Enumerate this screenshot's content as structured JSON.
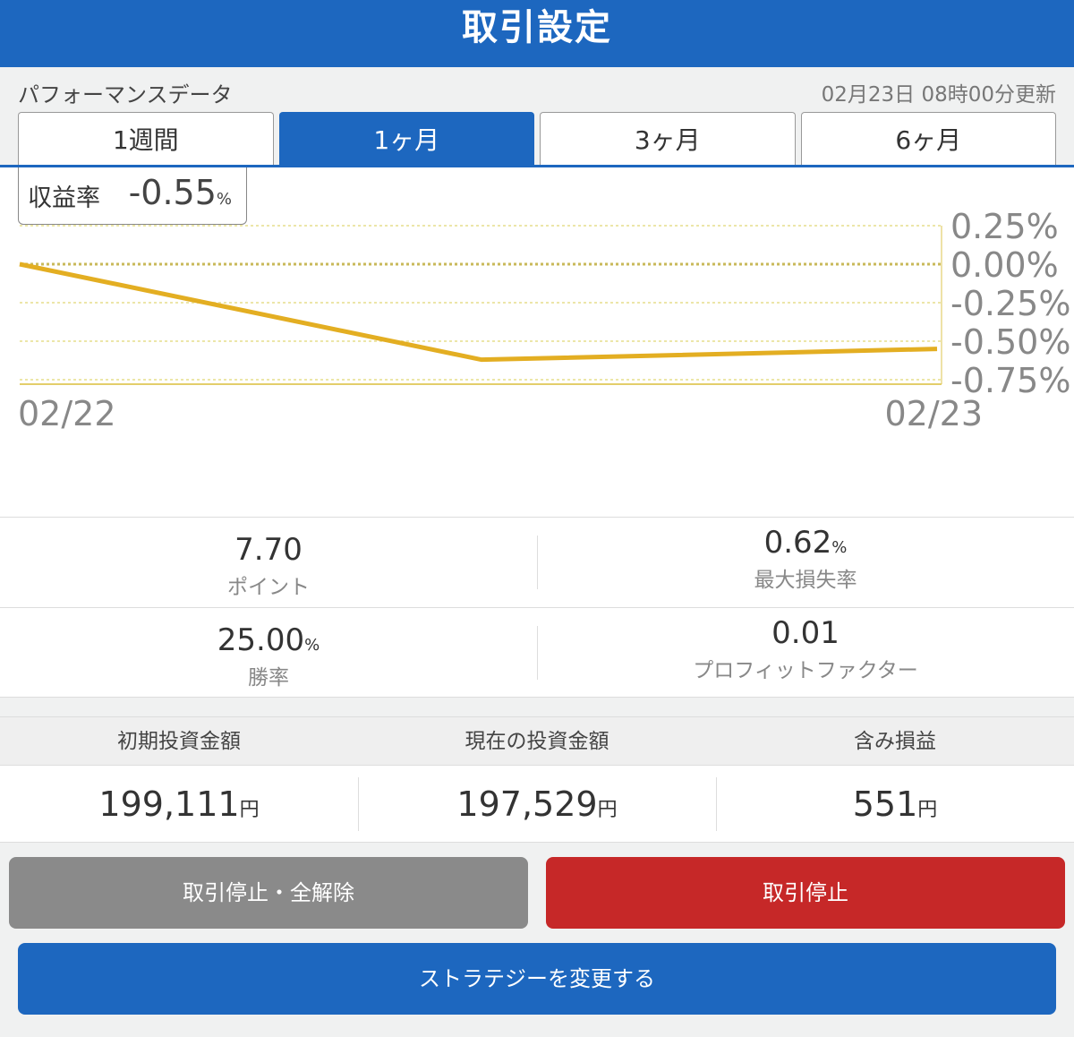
{
  "header": {
    "title": "取引設定"
  },
  "performance": {
    "title": "パフォーマンスデータ",
    "updated": "02月23日 08時00分更新"
  },
  "tabs": [
    {
      "label": "1週間"
    },
    {
      "label": "1ヶ月"
    },
    {
      "label": "3ヶ月"
    },
    {
      "label": "6ヶ月"
    }
  ],
  "active_tab": "1ヶ月",
  "return_rate": {
    "label": "収益率",
    "value": "-0.55",
    "unit": "%"
  },
  "chart_data": {
    "type": "line",
    "x": [
      "02/22",
      "mid",
      "02/23"
    ],
    "xticks": [
      "02/22",
      "02/23"
    ],
    "y": [
      0.0,
      -0.62,
      -0.55
    ],
    "yticks": [
      "0.25%",
      "0.00%",
      "-0.25%",
      "-0.50%",
      "-0.75%"
    ],
    "ylim": [
      -0.75,
      0.25
    ],
    "grid": true,
    "color": "#e3ae22"
  },
  "stats": [
    {
      "value": "7.70",
      "unit": "",
      "label": "ポイント"
    },
    {
      "value": "0.62",
      "unit": "%",
      "label": "最大損失率"
    },
    {
      "value": "25.00",
      "unit": "%",
      "label": "勝率"
    },
    {
      "value": "0.01",
      "unit": "",
      "label": "プロフィットファクター"
    }
  ],
  "investment": {
    "headers": [
      "初期投資金額",
      "現在の投資金額",
      "含み損益"
    ],
    "values": [
      "199,111",
      "197,529",
      "551"
    ],
    "unit": "円"
  },
  "buttons": {
    "stop_all": "取引停止・全解除",
    "stop": "取引停止",
    "change": "ストラテジーを変更する"
  },
  "colors": {
    "primary": "#1d67bf",
    "danger": "#c62828",
    "gray": "#8a8a8a"
  }
}
